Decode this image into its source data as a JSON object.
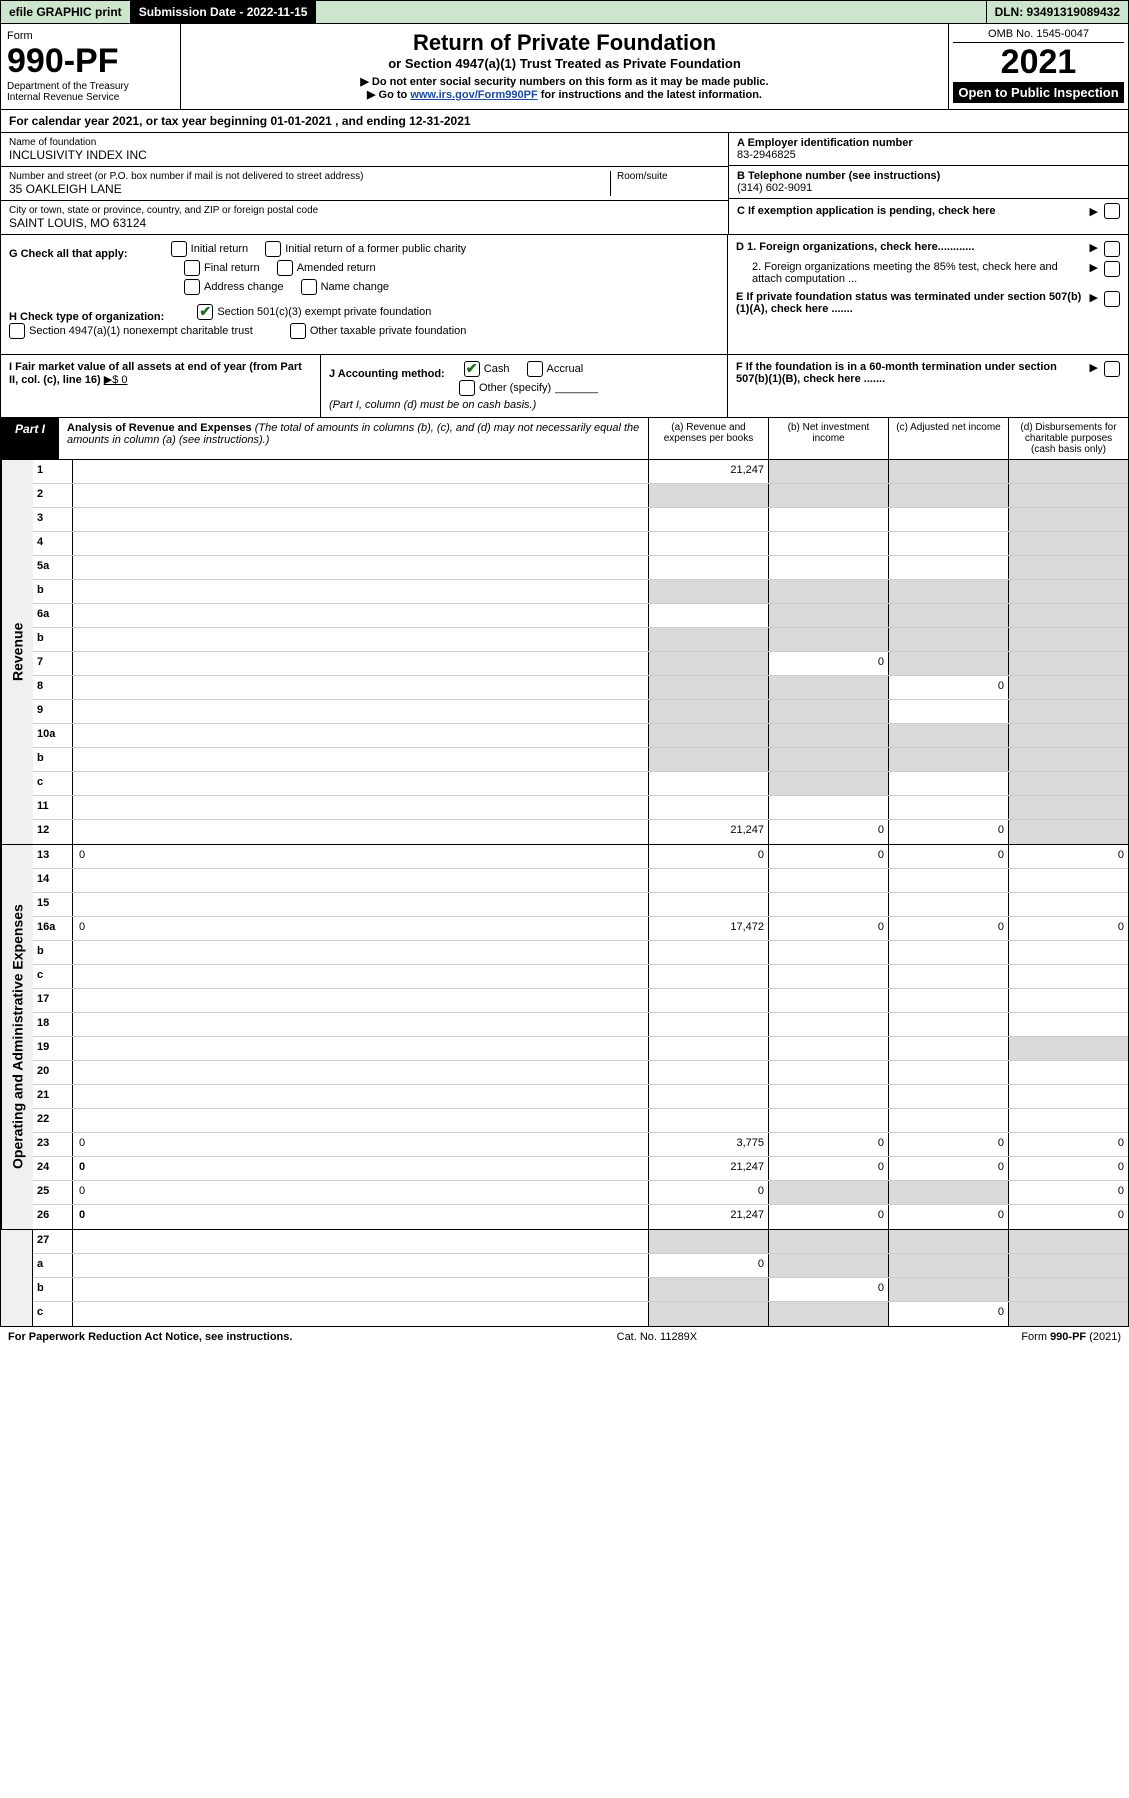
{
  "top": {
    "efile": "efile GRAPHIC print",
    "sub_date_lbl": "Submission Date - 2022-11-15",
    "dln": "DLN: 93491319089432"
  },
  "header": {
    "form_lbl": "Form",
    "form_num": "990-PF",
    "dept": "Department of the Treasury\nInternal Revenue Service",
    "title1": "Return of Private Foundation",
    "title2": "or Section 4947(a)(1) Trust Treated as Private Foundation",
    "sub1": "▶ Do not enter social security numbers on this form as it may be made public.",
    "sub2_pre": "▶ Go to ",
    "sub2_link": "www.irs.gov/Form990PF",
    "sub2_post": " for instructions and the latest information.",
    "omb": "OMB No. 1545-0047",
    "year": "2021",
    "open_pub": "Open to Public Inspection"
  },
  "cal": "For calendar year 2021, or tax year beginning 01-01-2021                 , and ending 12-31-2021",
  "info": {
    "name_lbl": "Name of foundation",
    "name": "INCLUSIVITY INDEX INC",
    "addr_lbl": "Number and street (or P.O. box number if mail is not delivered to street address)",
    "room_lbl": "Room/suite",
    "addr": "35 OAKLEIGH LANE",
    "city_lbl": "City or town, state or province, country, and ZIP or foreign postal code",
    "city": "SAINT LOUIS, MO  63124",
    "a_lbl": "A Employer identification number",
    "a_val": "83-2946825",
    "b_lbl": "B Telephone number (see instructions)",
    "b_val": "(314) 602-9091",
    "c_lbl": "C If exemption application is pending, check here",
    "d1": "D 1. Foreign organizations, check here............",
    "d2": "2. Foreign organizations meeting the 85% test, check here and attach computation ...",
    "e": "E  If private foundation status was terminated under section 507(b)(1)(A), check here .......",
    "f": "F  If the foundation is in a 60-month termination under section 507(b)(1)(B), check here .......",
    "g_lbl": "G Check all that apply:",
    "g_opts": [
      "Initial return",
      "Initial return of a former public charity",
      "Final return",
      "Amended return",
      "Address change",
      "Name change"
    ],
    "h_lbl": "H Check type of organization:",
    "h_opt1": "Section 501(c)(3) exempt private foundation",
    "h_opt2": "Section 4947(a)(1) nonexempt charitable trust",
    "h_opt3": "Other taxable private foundation",
    "i_lbl": "I Fair market value of all assets at end of year (from Part II, col. (c), line 16)",
    "i_val": "▶$  0",
    "j_lbl": "J Accounting method:",
    "j_cash": "Cash",
    "j_accrual": "Accrual",
    "j_other": "Other (specify)",
    "j_note": "(Part I, column (d) must be on cash basis.)"
  },
  "part1": {
    "hdr": "Part I",
    "title": "Analysis of Revenue and Expenses",
    "note": "(The total of amounts in columns (b), (c), and (d) may not necessarily equal the amounts in column (a) (see instructions).)",
    "col_a": "(a)   Revenue and expenses per books",
    "col_b": "(b)    Net investment income",
    "col_c": "(c)   Adjusted net income",
    "col_d": "(d)   Disbursements for charitable purposes (cash basis only)"
  },
  "side_rev": "Revenue",
  "side_exp": "Operating and Administrative Expenses",
  "rows_rev": [
    {
      "n": "1",
      "d": "",
      "a": "21,247",
      "b": "",
      "c": "",
      "gb": true,
      "gc": true,
      "gd": true
    },
    {
      "n": "2",
      "d": "",
      "a": "",
      "b": "",
      "c": "",
      "ga": true,
      "gb": true,
      "gc": true,
      "gd": true
    },
    {
      "n": "3",
      "d": "",
      "a": "",
      "b": "",
      "c": "",
      "gd": true
    },
    {
      "n": "4",
      "d": "",
      "a": "",
      "b": "",
      "c": "",
      "gd": true
    },
    {
      "n": "5a",
      "d": "",
      "a": "",
      "b": "",
      "c": "",
      "gd": true
    },
    {
      "n": "b",
      "d": "",
      "a": "",
      "b": "",
      "c": "",
      "ga": true,
      "gb": true,
      "gc": true,
      "gd": true
    },
    {
      "n": "6a",
      "d": "",
      "a": "",
      "b": "",
      "c": "",
      "gb": true,
      "gc": true,
      "gd": true
    },
    {
      "n": "b",
      "d": "",
      "a": "",
      "b": "",
      "c": "",
      "ga": true,
      "gb": true,
      "gc": true,
      "gd": true
    },
    {
      "n": "7",
      "d": "",
      "a": "",
      "b": "0",
      "c": "",
      "ga": true,
      "gc": true,
      "gd": true
    },
    {
      "n": "8",
      "d": "",
      "a": "",
      "b": "",
      "c": "0",
      "ga": true,
      "gb": true,
      "gd": true
    },
    {
      "n": "9",
      "d": "",
      "a": "",
      "b": "",
      "c": "",
      "ga": true,
      "gb": true,
      "gd": true
    },
    {
      "n": "10a",
      "d": "",
      "a": "",
      "b": "",
      "c": "",
      "ga": true,
      "gb": true,
      "gc": true,
      "gd": true
    },
    {
      "n": "b",
      "d": "",
      "a": "",
      "b": "",
      "c": "",
      "ga": true,
      "gb": true,
      "gc": true,
      "gd": true
    },
    {
      "n": "c",
      "d": "",
      "a": "",
      "b": "",
      "c": "",
      "gb": true,
      "gd": true
    },
    {
      "n": "11",
      "d": "",
      "a": "",
      "b": "",
      "c": "",
      "gd": true
    },
    {
      "n": "12",
      "d": "",
      "a": "21,247",
      "b": "0",
      "c": "0",
      "bold": true,
      "gd": true
    }
  ],
  "rows_exp": [
    {
      "n": "13",
      "d": "0",
      "a": "0",
      "b": "0",
      "c": "0"
    },
    {
      "n": "14",
      "d": "",
      "a": "",
      "b": "",
      "c": ""
    },
    {
      "n": "15",
      "d": "",
      "a": "",
      "b": "",
      "c": ""
    },
    {
      "n": "16a",
      "d": "0",
      "a": "17,472",
      "b": "0",
      "c": "0"
    },
    {
      "n": "b",
      "d": "",
      "a": "",
      "b": "",
      "c": ""
    },
    {
      "n": "c",
      "d": "",
      "a": "",
      "b": "",
      "c": ""
    },
    {
      "n": "17",
      "d": "",
      "a": "",
      "b": "",
      "c": ""
    },
    {
      "n": "18",
      "d": "",
      "a": "",
      "b": "",
      "c": ""
    },
    {
      "n": "19",
      "d": "",
      "a": "",
      "b": "",
      "c": "",
      "gd": true
    },
    {
      "n": "20",
      "d": "",
      "a": "",
      "b": "",
      "c": ""
    },
    {
      "n": "21",
      "d": "",
      "a": "",
      "b": "",
      "c": ""
    },
    {
      "n": "22",
      "d": "",
      "a": "",
      "b": "",
      "c": ""
    },
    {
      "n": "23",
      "d": "0",
      "a": "3,775",
      "b": "0",
      "c": "0"
    },
    {
      "n": "24",
      "d": "0",
      "a": "21,247",
      "b": "0",
      "c": "0",
      "bold": true
    },
    {
      "n": "25",
      "d": "0",
      "a": "0",
      "b": "",
      "c": "",
      "gb": true,
      "gc": true
    },
    {
      "n": "26",
      "d": "0",
      "a": "21,247",
      "b": "0",
      "c": "0",
      "bold": true
    }
  ],
  "rows_bot": [
    {
      "n": "27",
      "d": "",
      "a": "",
      "b": "",
      "c": "",
      "ga": true,
      "gb": true,
      "gc": true,
      "gd": true
    },
    {
      "n": "a",
      "d": "",
      "a": "0",
      "b": "",
      "c": "",
      "bold": true,
      "gb": true,
      "gc": true,
      "gd": true
    },
    {
      "n": "b",
      "d": "",
      "a": "",
      "b": "0",
      "c": "",
      "bold": true,
      "ga": true,
      "gc": true,
      "gd": true
    },
    {
      "n": "c",
      "d": "",
      "a": "",
      "b": "",
      "c": "0",
      "bold": true,
      "ga": true,
      "gb": true,
      "gd": true
    }
  ],
  "foot": {
    "left": "For Paperwork Reduction Act Notice, see instructions.",
    "mid": "Cat. No. 11289X",
    "right": "Form 990-PF (2021)"
  },
  "colors": {
    "top_bg": "#cce5cc",
    "grey": "#d9d9d9",
    "link": "#1a4ba0"
  }
}
